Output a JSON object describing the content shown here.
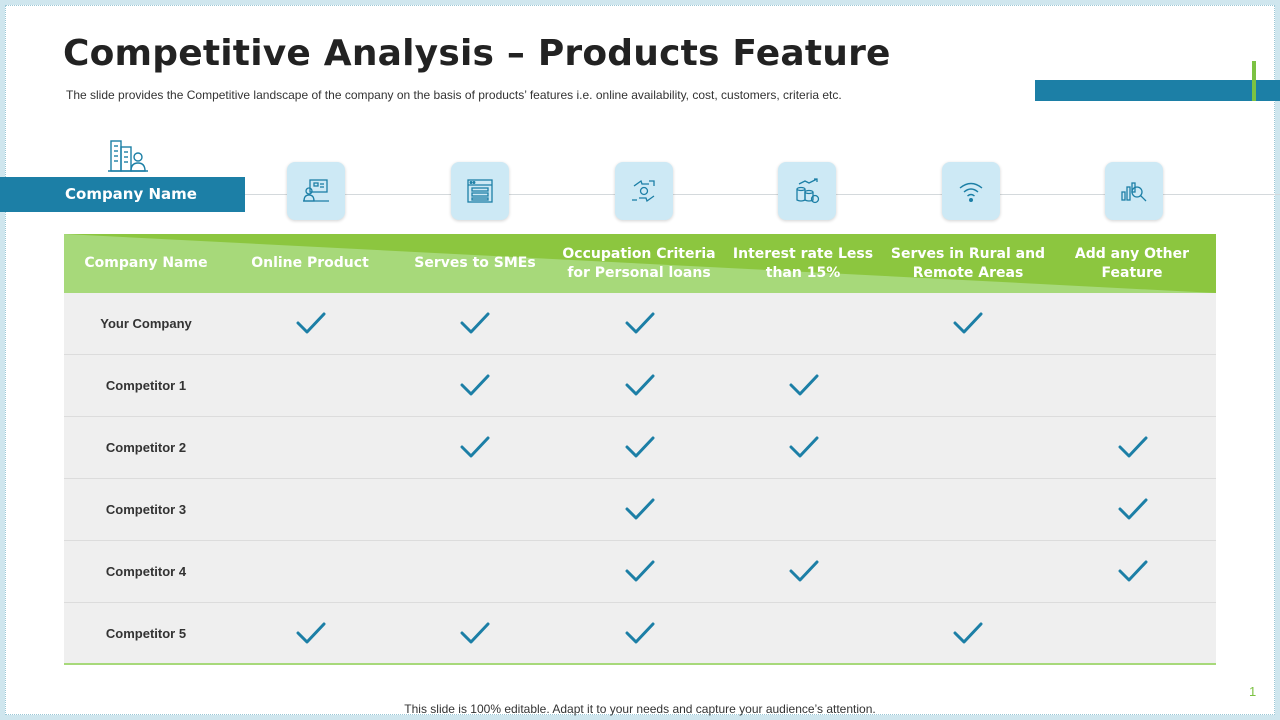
{
  "slide": {
    "title": "Competitive Analysis – Products Feature",
    "subtitle": "The slide provides the Competitive landscape of the company on the basis of products’ features i.e. online availability, cost, customers, criteria etc.",
    "company_bar_label": "Company Name",
    "footer": "This slide is 100% editable. Adapt it to your needs and capture your audience’s attention.",
    "page_number": "1"
  },
  "colors": {
    "accent_blue": "#1c7fa6",
    "accent_green": "#8cc63f",
    "icon_tile": "#cde9f5",
    "row_bg": "#efefef"
  },
  "feature_icons": [
    {
      "name": "online-presenter-icon"
    },
    {
      "name": "browser-window-icon"
    },
    {
      "name": "hand-money-exchange-icon"
    },
    {
      "name": "coins-growth-icon"
    },
    {
      "name": "wifi-signal-icon"
    },
    {
      "name": "chart-magnifier-icon"
    }
  ],
  "table": {
    "headers": [
      "Company Name",
      "Online Product",
      "Serves to SMEs",
      "Occupation Criteria for Personal loans",
      "Interest rate Less than 15%",
      "Serves in Rural and Remote Areas",
      "Add any Other Feature"
    ],
    "rows": [
      {
        "name": "Your Company",
        "checks": [
          true,
          true,
          true,
          false,
          true,
          false
        ]
      },
      {
        "name": "Competitor 1",
        "checks": [
          false,
          true,
          true,
          true,
          false,
          false
        ]
      },
      {
        "name": "Competitor 2",
        "checks": [
          false,
          true,
          true,
          true,
          false,
          true
        ]
      },
      {
        "name": "Competitor 3",
        "checks": [
          false,
          false,
          true,
          false,
          false,
          true
        ]
      },
      {
        "name": "Competitor 4",
        "checks": [
          false,
          false,
          true,
          true,
          false,
          true
        ]
      },
      {
        "name": "Competitor 5",
        "checks": [
          true,
          true,
          true,
          false,
          true,
          false
        ]
      }
    ]
  }
}
